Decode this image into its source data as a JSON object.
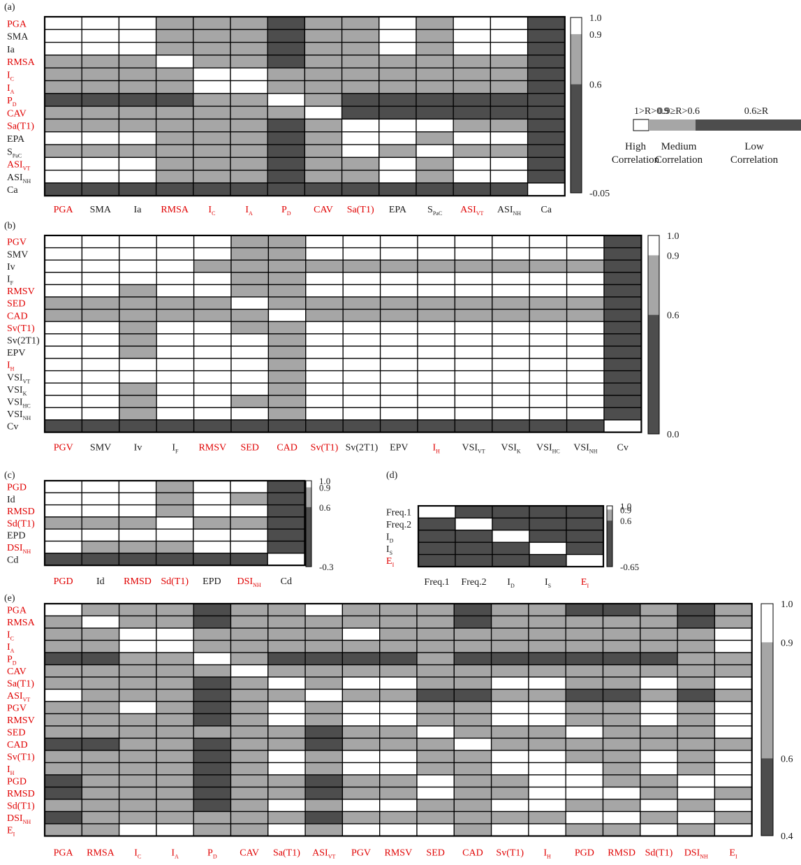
{
  "colors": {
    "high": "#ffffff",
    "medium": "#a6a6a6",
    "low": "#4d4d4d",
    "highlight_label": "#e00000",
    "normal_label": "#1a1a1a"
  },
  "legend": {
    "ranges": [
      "1>R>0.9",
      "0.9≥R>0.6",
      "0.6≥R"
    ],
    "high_label": [
      "High",
      "Correlation"
    ],
    "medium_label": [
      "Medium",
      "Correlation"
    ],
    "low_label": [
      "Low",
      "Correlation"
    ]
  },
  "chart_data": [
    {
      "type": "heatmap",
      "panel": "(a)",
      "labels": [
        {
          "t": "PGA",
          "red": true
        },
        {
          "t": "SMA"
        },
        {
          "t": "Ia"
        },
        {
          "t": "RMSA",
          "red": true
        },
        {
          "t": "I",
          "sub": "C",
          "red": true
        },
        {
          "t": "I",
          "sub": "A",
          "red": true
        },
        {
          "t": "P",
          "sub": "D",
          "red": true
        },
        {
          "t": "CAV",
          "red": true
        },
        {
          "t": "Sa(T1)",
          "red": true
        },
        {
          "t": "EPA"
        },
        {
          "t": "S",
          "sub": "PaC"
        },
        {
          "t": "ASI",
          "sub": "VT",
          "red": true
        },
        {
          "t": "ASI",
          "sub": "NH"
        },
        {
          "t": "Ca"
        }
      ],
      "levels": [
        "HHHMMMLMMHMHHL",
        "HHHMMMLMMHMHHL",
        "HHHMMMLMMHMHHL",
        "MMMHMMLMMMMMML",
        "MMMMHHMMMMMMML",
        "MMMMHHMMMMMMML",
        "LLLLMMHMLLLLLL",
        "MMMMMMMHLLLLLL",
        "MMMMMMLMHHHMML",
        "HHHMMMLMHHMHHL",
        "MMMMMMLMHMHMML",
        "HHHMMMLMMHMHHL",
        "HHHMMMLMMHMHHL",
        "LLLLLLLLLLLLLH"
      ],
      "colorbar": {
        "ticks": [
          "1.0",
          "0.9",
          "0.6",
          "-0.05"
        ],
        "values": [
          1.0,
          0.9,
          0.6,
          -0.05
        ]
      }
    },
    {
      "type": "heatmap",
      "panel": "(b)",
      "labels": [
        {
          "t": "PGV",
          "red": true
        },
        {
          "t": "SMV"
        },
        {
          "t": "Iv"
        },
        {
          "t": "I",
          "sub": "F"
        },
        {
          "t": "RMSV",
          "red": true
        },
        {
          "t": "SED",
          "red": true
        },
        {
          "t": "CAD",
          "red": true
        },
        {
          "t": "Sv(T1)",
          "red": true
        },
        {
          "t": "Sv(2T1)"
        },
        {
          "t": "EPV"
        },
        {
          "t": "I",
          "sub": "H",
          "red": true
        },
        {
          "t": "VSI",
          "sub": "VT"
        },
        {
          "t": "VSI",
          "sub": "K"
        },
        {
          "t": "VSI",
          "sub": "HC"
        },
        {
          "t": "VSI",
          "sub": "NH"
        },
        {
          "t": "Cv"
        }
      ],
      "levels": [
        "HHHHHMMHHHHHHHHL",
        "HHHHHMMHHHHHHHHL",
        "HHHHMMMMMMMMMMML",
        "HHHHHMMHHHHHHHHL",
        "HHMHHMMHHHHHHHHL",
        "MMMMMHMMMMMMMMML",
        "MMMMMMHMMMMMMMML",
        "HHMHHMMHHHHHHHHL",
        "HHMHHHMHHHHHHHHL",
        "HHMHHHMHHHHHHHHL",
        "HHHHHHMHHHHHHHHL",
        "HHHHHHMHHHHHHHHL",
        "HHMHHHMHHHHHHHHL",
        "HHMHHMMHHHHHHHHL",
        "HHMHHHMHHHHHHHHL",
        "LLLLLLLLLLLLLLLH"
      ],
      "colorbar": {
        "ticks": [
          "1.0",
          "0.9",
          "0.6",
          "0.0"
        ],
        "values": [
          1.0,
          0.9,
          0.6,
          0.0
        ]
      }
    },
    {
      "type": "heatmap",
      "panel": "(c)",
      "labels": [
        {
          "t": "PGD",
          "red": true
        },
        {
          "t": "Id"
        },
        {
          "t": "RMSD",
          "red": true
        },
        {
          "t": "Sd(T1)",
          "red": true
        },
        {
          "t": "EPD"
        },
        {
          "t": "DSI",
          "sub": "NH",
          "red": true
        },
        {
          "t": "Cd"
        }
      ],
      "levels": [
        "HHHMHHL",
        "HHHMHML",
        "HHHMHHL",
        "MMMHMML",
        "HHHHHHL",
        "HMMMHHL",
        "LLLLLLH"
      ],
      "colorbar": {
        "ticks": [
          "1.0",
          "0.9",
          "0.6",
          "-0.3"
        ],
        "values": [
          1.0,
          0.9,
          0.6,
          -0.3
        ]
      }
    },
    {
      "type": "heatmap",
      "panel": "(d)",
      "labels": [
        {
          "t": "Freq.1"
        },
        {
          "t": "Freq.2"
        },
        {
          "t": "I",
          "sub": "D"
        },
        {
          "t": "I",
          "sub": "S"
        },
        {
          "t": "E",
          "sub": "I",
          "red": true
        }
      ],
      "levels": [
        "HLLLL",
        "LHLLL",
        "LLHLL",
        "LLLHL",
        "LLLLH"
      ],
      "colorbar": {
        "ticks": [
          "1.0",
          "0.9",
          "0.6",
          "-0.65"
        ],
        "values": [
          1.0,
          0.9,
          0.6,
          -0.65
        ]
      }
    },
    {
      "type": "heatmap",
      "panel": "(e)",
      "labels": [
        {
          "t": "PGA",
          "red": true
        },
        {
          "t": "RMSA",
          "red": true
        },
        {
          "t": "I",
          "sub": "C",
          "red": true
        },
        {
          "t": "I",
          "sub": "A",
          "red": true
        },
        {
          "t": "P",
          "sub": "D",
          "red": true
        },
        {
          "t": "CAV",
          "red": true
        },
        {
          "t": "Sa(T1)",
          "red": true
        },
        {
          "t": "ASI",
          "sub": "VT",
          "red": true
        },
        {
          "t": "PGV",
          "red": true
        },
        {
          "t": "RMSV",
          "red": true
        },
        {
          "t": "SED",
          "red": true
        },
        {
          "t": "CAD",
          "red": true
        },
        {
          "t": "Sv(T1)",
          "red": true
        },
        {
          "t": "I",
          "sub": "H",
          "red": true
        },
        {
          "t": "PGD",
          "red": true
        },
        {
          "t": "RMSD",
          "red": true
        },
        {
          "t": "Sd(T1)",
          "red": true
        },
        {
          "t": "DSI",
          "sub": "NH",
          "red": true
        },
        {
          "t": "E",
          "sub": "I",
          "red": true
        }
      ],
      "levels": [
        "HMMMLMMHMMMLMMLLMLM",
        "MHMMLMMMMMMLMMMMMLM",
        "MMHHMMMMHMMMMMMMMMH",
        "MMHHMMMMMMMMMMMMMMH",
        "LLMMHMLLLLMLLLLLLMM",
        "MMMMMHMMMMMMMMMMMMM",
        "MMMMLMHMHHMMHHMMHMH",
        "HMMMLMMHMMLLMMLLMLM",
        "MMHMLMHMHHMMHHMMHMH",
        "MMMMLMHMHHMMHHMMHMH",
        "MMMMMMMLMMHMMMHMMMH",
        "LLMMLMMLMMMHMMMMMMM",
        "MMMMLMHMHHMMHHMMHMH",
        "MMMMLMHMHHMMHHHMHMH",
        "LMMMLMMLMMHMMHHMMHH",
        "LMMMLMMLMMHMMHHHMHM",
        "MMMMLMHMHHMMHHMMHMH",
        "LMMMMMMLMMMMMMHHMHM",
        "MMHHMMHMHHHMHHMMHMH"
      ],
      "colorbar": {
        "ticks": [
          "1.0",
          "0.9",
          "0.6",
          "0.4"
        ],
        "values": [
          1.0,
          0.9,
          0.6,
          0.4
        ]
      }
    }
  ]
}
